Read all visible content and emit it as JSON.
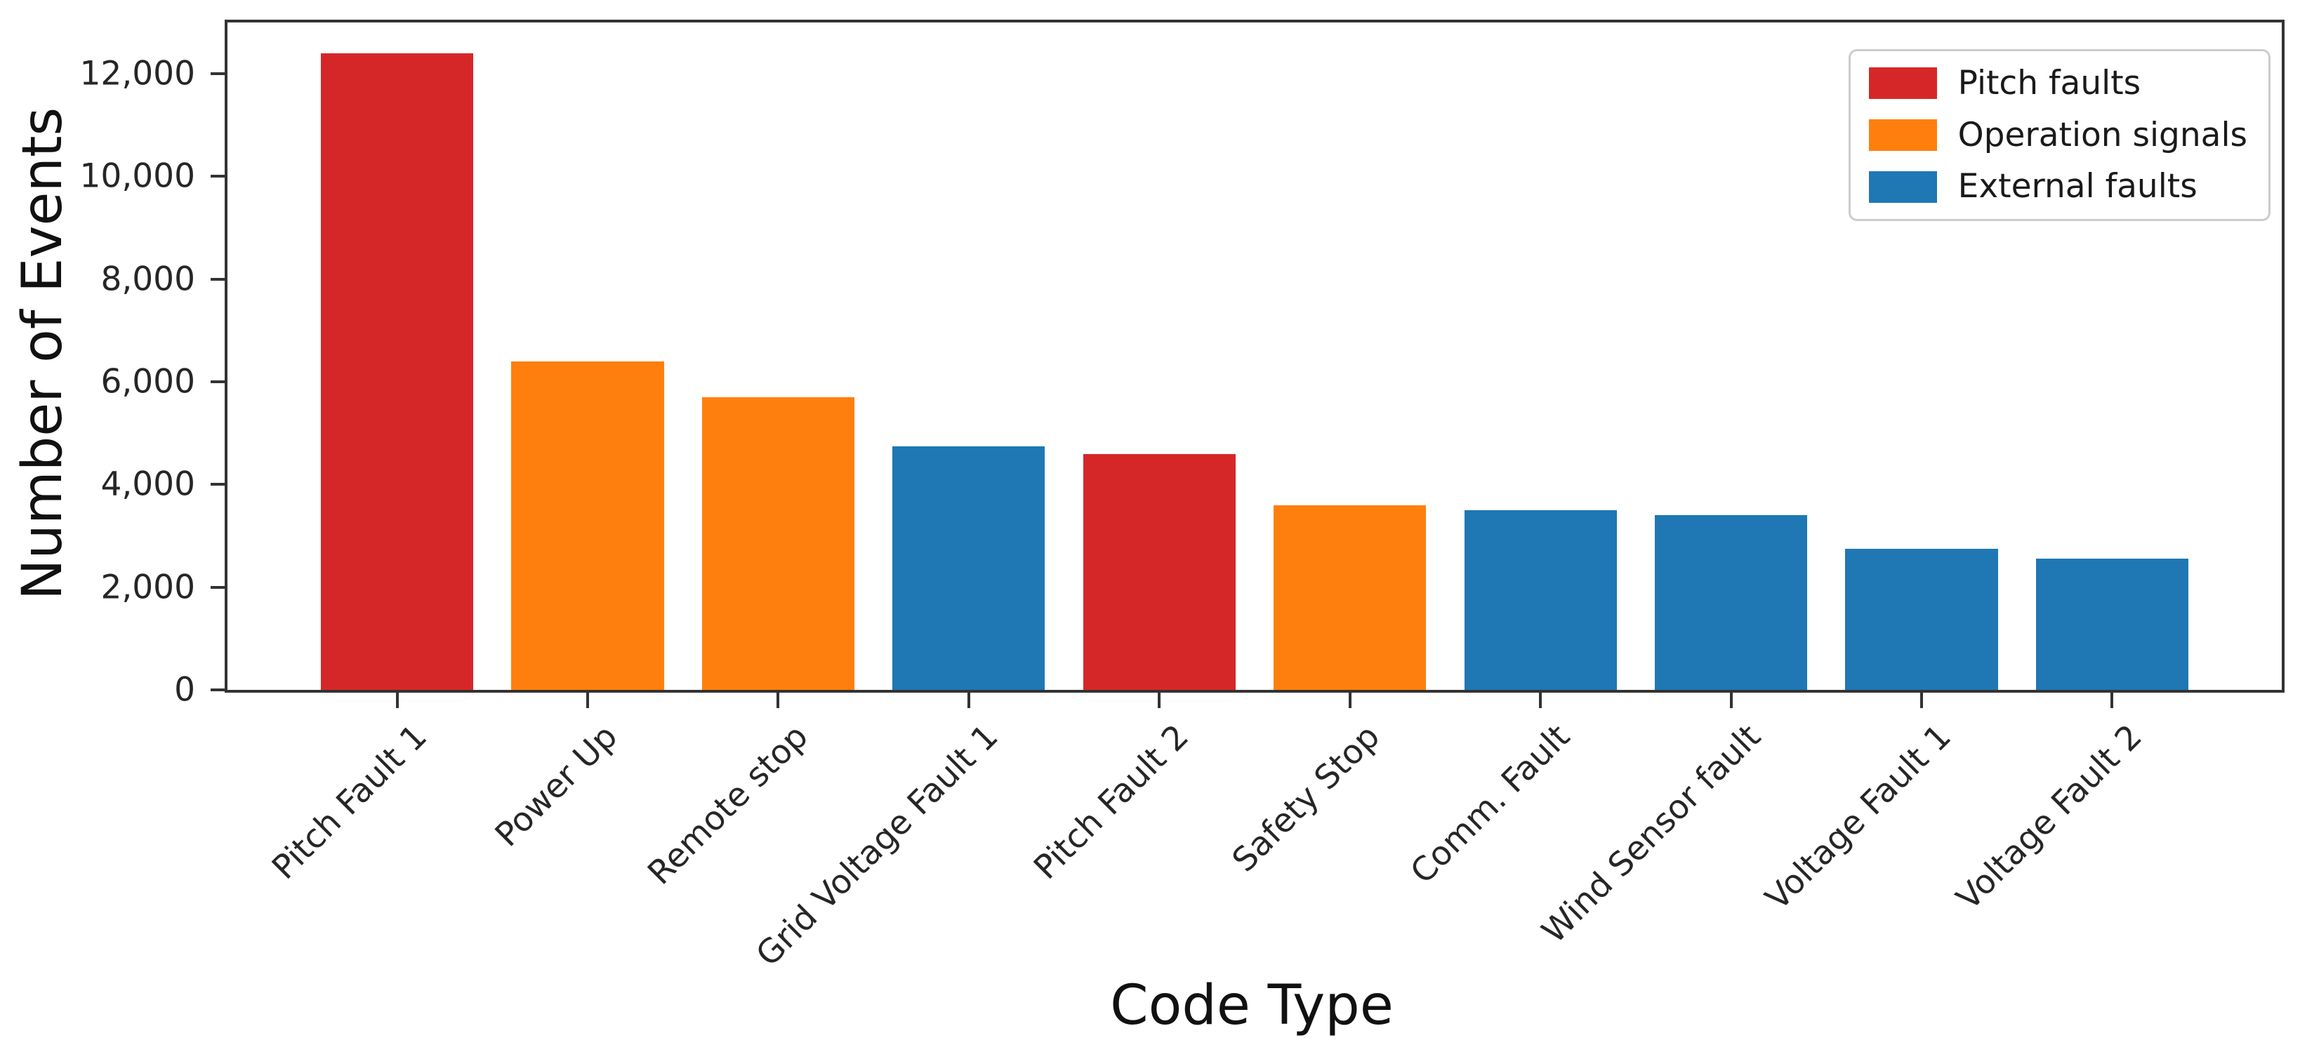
{
  "chart_data": {
    "type": "bar",
    "title": "",
    "xlabel": "Code Type",
    "ylabel": "Number of Events",
    "ylim": [
      0,
      13000
    ],
    "xlim_units": [
      -0.89,
      9.89
    ],
    "yticks": [
      0,
      2000,
      4000,
      6000,
      8000,
      10000,
      12000
    ],
    "ytick_labels": [
      "0",
      "2,000",
      "4,000",
      "6,000",
      "8,000",
      "10,000",
      "12,000"
    ],
    "grid": false,
    "xtick_rotation": 45,
    "bar_width_units": 0.8,
    "legend_position": "upper right",
    "categories": [
      "Pitch Fault 1",
      "Power Up",
      "Remote stop",
      "Grid Voltage Fault 1",
      "Pitch Fault 2",
      "Safety Stop",
      "Comm. Fault",
      "Wind Sensor fault",
      "Voltage Fault 1",
      "Voltage Fault 2"
    ],
    "values": [
      12400,
      6400,
      5700,
      4750,
      4600,
      3600,
      3500,
      3400,
      2750,
      2550
    ],
    "bar_groups": [
      "Pitch faults",
      "Operation signals",
      "Operation signals",
      "External faults",
      "Pitch faults",
      "Operation signals",
      "External faults",
      "External faults",
      "External faults",
      "External faults"
    ],
    "legend": [
      {
        "label": "Pitch faults",
        "color": "#d62728"
      },
      {
        "label": "Operation signals",
        "color": "#ff7f0e"
      },
      {
        "label": "External faults",
        "color": "#1f77b4"
      }
    ],
    "colors": {
      "spine": "#333333",
      "text": "#1a1a1a",
      "background": "#ffffff"
    }
  }
}
